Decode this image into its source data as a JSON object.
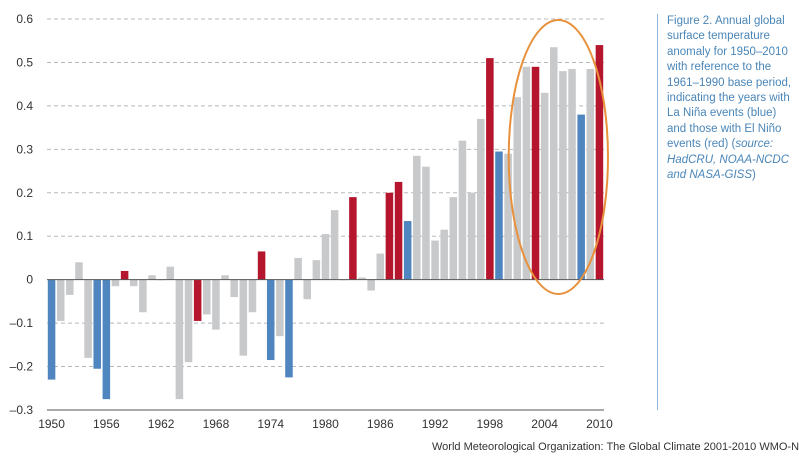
{
  "colors": {
    "neutral": "#c8c9cb",
    "la_nina": "#4f86c0",
    "el_nino": "#b5162d",
    "highlight": "#e8913d",
    "caption": "#4a86b8"
  },
  "caption": {
    "prefix": "Figure 2. Annual global surface temperature anomaly for 1950–2010 with reference to the 1961–1990 base period, indicating the years with La Niña events (blue) and those with El Niño events (red) (",
    "source": "source: HadCRU, NOAA-NCDC and NASA-GISS",
    "suffix": ")"
  },
  "credit": "World Meteorological Organization: The Global Climate 2001-2010 WMO-No. 1119",
  "chart_data": {
    "type": "bar",
    "title": "",
    "xlabel": "",
    "ylabel": "",
    "ylim": [
      -0.3,
      0.6
    ],
    "yticks": [
      "0.6",
      "0.5",
      "0.4",
      "0.3",
      "0.2",
      "0.1",
      "0",
      "–0.1",
      "–0.2",
      "–0.3"
    ],
    "ytick_values": [
      0.6,
      0.5,
      0.4,
      0.3,
      0.2,
      0.1,
      0,
      -0.1,
      -0.2,
      -0.3
    ],
    "xticks": [
      "1950",
      "1956",
      "1962",
      "1968",
      "1974",
      "1980",
      "1986",
      "1992",
      "1998",
      "2004",
      "2010"
    ],
    "grid": "horizontal dashed",
    "highlight": "orange ellipse around 2001–2010",
    "categories": [
      "1950",
      "1951",
      "1952",
      "1953",
      "1954",
      "1955",
      "1956",
      "1957",
      "1958",
      "1959",
      "1960",
      "1961",
      "1962",
      "1963",
      "1964",
      "1965",
      "1966",
      "1967",
      "1968",
      "1969",
      "1970",
      "1971",
      "1972",
      "1973",
      "1974",
      "1975",
      "1976",
      "1977",
      "1978",
      "1979",
      "1980",
      "1981",
      "1982",
      "1983",
      "1984",
      "1985",
      "1986",
      "1987",
      "1988",
      "1989",
      "1990",
      "1991",
      "1992",
      "1993",
      "1994",
      "1995",
      "1996",
      "1997",
      "1998",
      "1999",
      "2000",
      "2001",
      "2002",
      "2003",
      "2004",
      "2005",
      "2006",
      "2007",
      "2008",
      "2009",
      "2010"
    ],
    "values": [
      -0.23,
      -0.095,
      -0.035,
      0.04,
      -0.18,
      -0.205,
      -0.275,
      -0.015,
      0.02,
      -0.015,
      -0.075,
      0.01,
      0.0,
      0.03,
      -0.275,
      -0.19,
      -0.095,
      -0.08,
      -0.115,
      0.01,
      -0.04,
      -0.175,
      -0.075,
      0.065,
      -0.185,
      -0.13,
      -0.225,
      0.05,
      -0.045,
      0.045,
      0.105,
      0.16,
      0.0,
      0.19,
      0.005,
      -0.025,
      0.06,
      0.2,
      0.225,
      0.135,
      0.285,
      0.26,
      0.09,
      0.115,
      0.19,
      0.32,
      0.2,
      0.37,
      0.51,
      0.295,
      0.29,
      0.42,
      0.49,
      0.49,
      0.43,
      0.535,
      0.48,
      0.485,
      0.38,
      0.485,
      0.54
    ],
    "event": [
      "la_nina",
      "neutral",
      "neutral",
      "neutral",
      "neutral",
      "la_nina",
      "la_nina",
      "neutral",
      "el_nino",
      "neutral",
      "neutral",
      "neutral",
      "neutral",
      "neutral",
      "neutral",
      "neutral",
      "el_nino",
      "neutral",
      "neutral",
      "neutral",
      "neutral",
      "neutral",
      "neutral",
      "el_nino",
      "la_nina",
      "neutral",
      "la_nina",
      "neutral",
      "neutral",
      "neutral",
      "neutral",
      "neutral",
      "neutral",
      "el_nino",
      "neutral",
      "neutral",
      "neutral",
      "el_nino",
      "el_nino",
      "la_nina",
      "neutral",
      "neutral",
      "neutral",
      "neutral",
      "neutral",
      "neutral",
      "neutral",
      "neutral",
      "el_nino",
      "la_nina",
      "neutral",
      "neutral",
      "neutral",
      "el_nino",
      "neutral",
      "neutral",
      "neutral",
      "neutral",
      "la_nina",
      "neutral",
      "el_nino"
    ]
  }
}
